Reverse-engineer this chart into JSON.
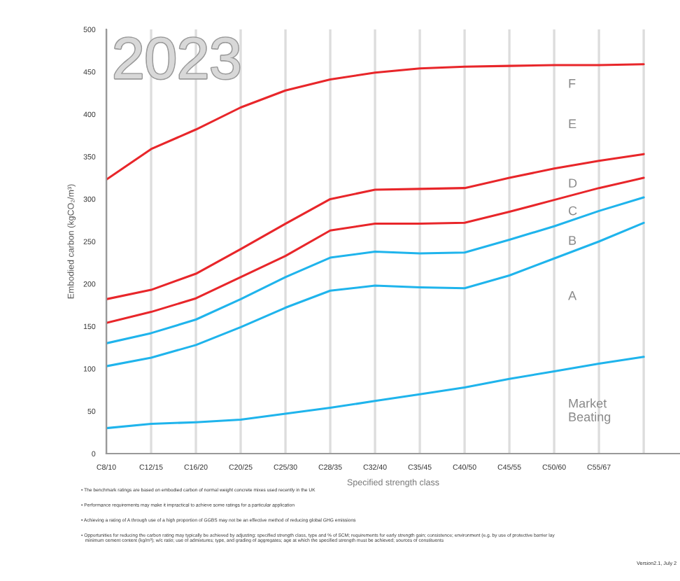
{
  "chart_data": {
    "type": "line",
    "xlabel": "Specified strength class",
    "ylabel": "Embodied carbon (kgCO₂/m³)",
    "categories": [
      "C8/10",
      "C12/15",
      "C16/20",
      "C20/25",
      "C25/30",
      "C28/35",
      "C32/40",
      "C35/45",
      "C40/50",
      "C45/55",
      "C50/60",
      "C55/67",
      null
    ],
    "series": [
      {
        "color": "#e8262a",
        "values": [
          323,
          359,
          382,
          408,
          428,
          441,
          449,
          454,
          456,
          457,
          458,
          458,
          459
        ]
      },
      {
        "color": "#e8262a",
        "values": [
          182,
          193,
          212,
          241,
          271,
          300,
          311,
          312,
          313,
          325,
          336,
          345,
          353
        ]
      },
      {
        "color": "#e8262a",
        "values": [
          154,
          167,
          183,
          208,
          233,
          263,
          271,
          271,
          272,
          285,
          299,
          313,
          325
        ]
      },
      {
        "color": "#1fb4ec",
        "values": [
          130,
          142,
          158,
          182,
          208,
          231,
          238,
          236,
          237,
          252,
          268,
          286,
          302
        ]
      },
      {
        "color": "#1fb4ec",
        "values": [
          103,
          113,
          128,
          149,
          172,
          192,
          198,
          196,
          195,
          210,
          230,
          250,
          272
        ]
      },
      {
        "color": "#1fb4ec",
        "values": [
          30,
          35,
          37,
          40,
          47,
          54,
          62,
          70,
          78,
          88,
          97,
          106,
          114
        ]
      }
    ],
    "ylim": [
      0,
      500
    ],
    "yticks": [
      0,
      50,
      100,
      150,
      200,
      250,
      300,
      350,
      400,
      450,
      500
    ],
    "grid": "x",
    "legend": false,
    "marker": "none",
    "line_style": "solid",
    "annotations": [
      "2023",
      "F",
      "E",
      "D",
      "C",
      "B",
      "A",
      "Market\nBeating",
      "• The benchmark ratings are based on embodied carbon of normal weight concrete mixes used recently in the UK",
      "• Performance requirements may make it impractical to achieve some ratings for a particular application",
      "• Achieving a rating of A through use of a high proportion of GGBS may not be an effective method of reducing global GHG emissions",
      "• Opportunities for reducing the carbon rating may typically be achieved by adjusting: specified strength class, type and % of SCM; requirements for early strength gain; consistence; environment (e.g. by use of protective barrier lay\n   minimum cement content (kg/m³); w/c ratio; use of admixtures; type, and grading of aggregates; age at which the specified strength must be achieved; sources of constituents",
      "Version2.1, July 2"
    ]
  }
}
